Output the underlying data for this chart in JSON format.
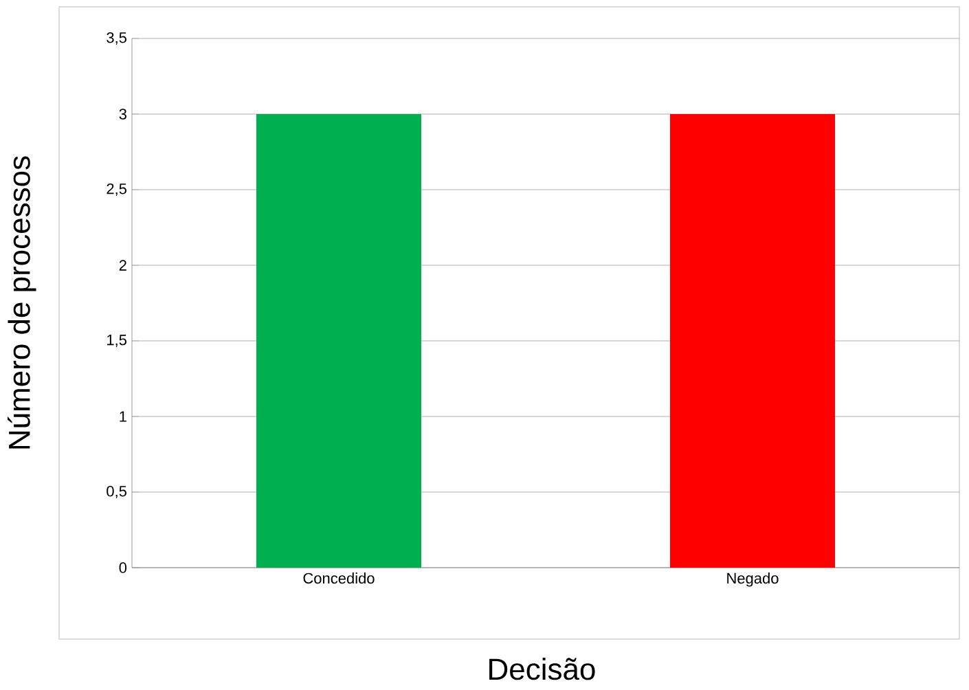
{
  "chart_data": {
    "type": "bar",
    "xlabel": "Decisão",
    "ylabel": "Número de processos",
    "categories": [
      "Concedido",
      "Negado"
    ],
    "values": [
      3,
      3
    ],
    "colors": [
      "#00b050",
      "#ff0000"
    ],
    "ylim": [
      0,
      3.5
    ],
    "yticks": [
      0,
      {
        "value": 0.5,
        "label": "0,5"
      },
      1,
      {
        "value": 1.5,
        "label": "1,5"
      },
      2,
      {
        "value": 2.5,
        "label": "2,5"
      },
      3,
      {
        "value": 3.5,
        "label": "3,5"
      }
    ],
    "grid": "y"
  }
}
